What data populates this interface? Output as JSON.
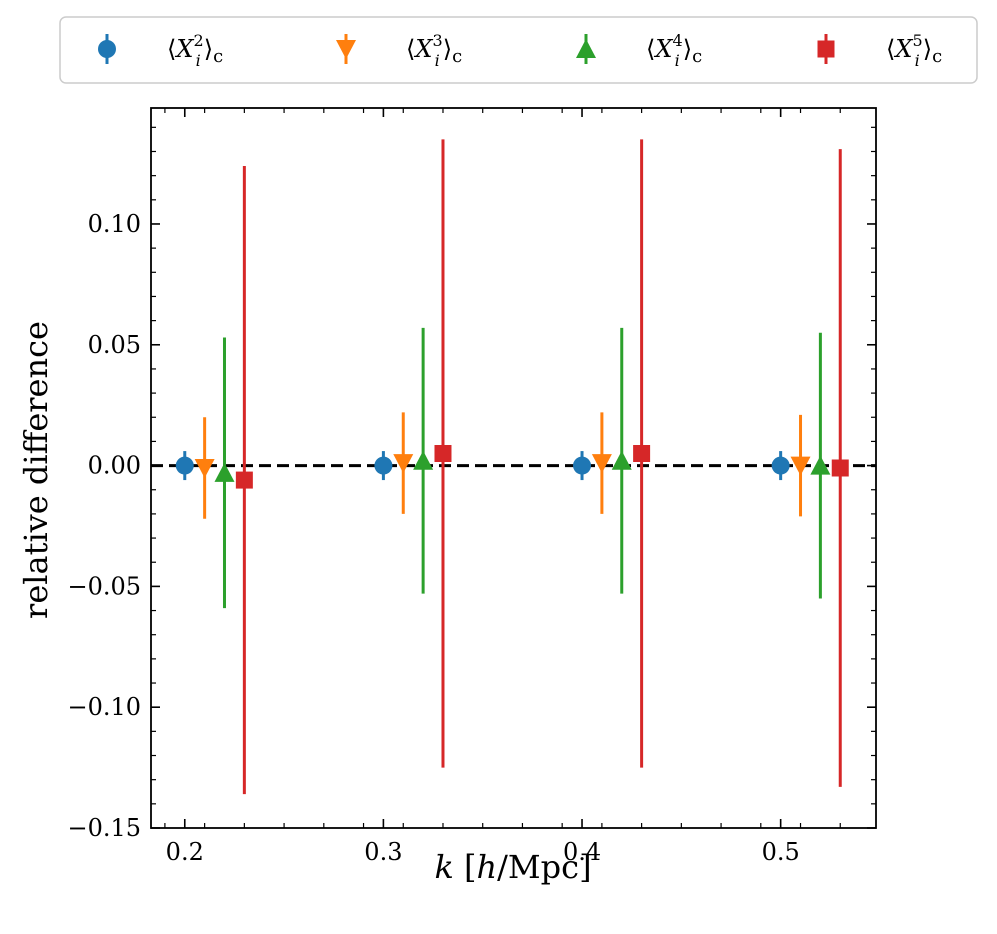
{
  "chart_data": {
    "type": "scatter",
    "subtype": "errorbar",
    "title": "",
    "xlabel": {
      "italic": "k",
      "rest_before": " [",
      "italic2": "h",
      "rest_after": "/Mpc]",
      "full": "k [h/Mpc]"
    },
    "ylabel": "relative difference",
    "xlim": [
      0.183,
      0.548
    ],
    "ylim": [
      -0.15,
      0.148
    ],
    "xticks": [
      0.2,
      0.3,
      0.4,
      0.5
    ],
    "xtick_labels": [
      "0.2",
      "0.3",
      "0.4",
      "0.5"
    ],
    "yticks": [
      -0.15,
      -0.1,
      -0.05,
      0.0,
      0.05,
      0.1
    ],
    "ytick_labels": [
      "−0.15",
      "−0.10",
      "−0.05",
      "0.00",
      "0.05",
      "0.10"
    ],
    "reference_line": {
      "y": 0,
      "style": "dashed",
      "color": "#000000"
    },
    "legend_position": "top, outside plot",
    "series": [
      {
        "name": "⟨X_i^2⟩_c",
        "power": "2",
        "marker": "circle",
        "color": "#1f77b4",
        "x": [
          0.2,
          0.3,
          0.4,
          0.5
        ],
        "y": [
          0.0,
          0.0,
          0.0,
          0.0
        ],
        "yerr": [
          0.006,
          0.006,
          0.006,
          0.006
        ]
      },
      {
        "name": "⟨X_i^3⟩_c",
        "power": "3",
        "marker": "triangle-down",
        "color": "#ff7f0e",
        "x": [
          0.21,
          0.31,
          0.41,
          0.51
        ],
        "y": [
          -0.001,
          0.001,
          0.001,
          0.0
        ],
        "yerr": [
          0.021,
          0.021,
          0.021,
          0.021
        ]
      },
      {
        "name": "⟨X_i^4⟩_c",
        "power": "4",
        "marker": "triangle-up",
        "color": "#2ca02c",
        "x": [
          0.22,
          0.32,
          0.42,
          0.52
        ],
        "y": [
          -0.003,
          0.002,
          0.002,
          0.0
        ],
        "yerr": [
          0.056,
          0.055,
          0.055,
          0.055
        ]
      },
      {
        "name": "⟨X_i^5⟩_c",
        "power": "5",
        "marker": "square",
        "color": "#d62728",
        "x": [
          0.23,
          0.33,
          0.43,
          0.53
        ],
        "y": [
          -0.006,
          0.005,
          0.005,
          -0.001
        ],
        "yerr": [
          0.13,
          0.13,
          0.13,
          0.132
        ]
      }
    ]
  }
}
